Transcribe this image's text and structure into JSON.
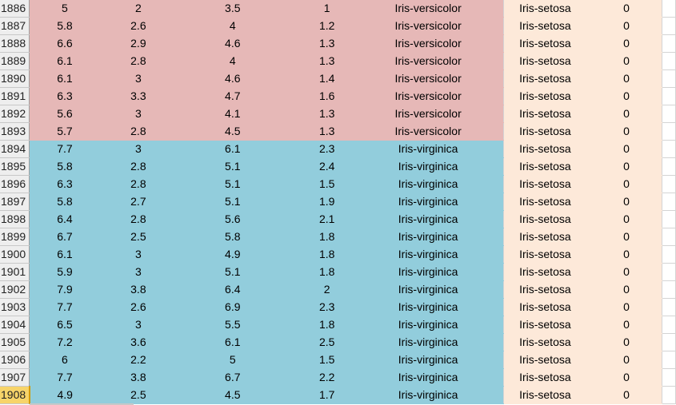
{
  "selected_row": "1908",
  "rows": [
    {
      "row": "1886",
      "c1": "5",
      "c2": "2",
      "c3": "3.5",
      "c4": "1",
      "species": "Iris-versicolor",
      "predicted": "Iris-setosa",
      "match": "0"
    },
    {
      "row": "1887",
      "c1": "5.8",
      "c2": "2.6",
      "c3": "4",
      "c4": "1.2",
      "species": "Iris-versicolor",
      "predicted": "Iris-setosa",
      "match": "0"
    },
    {
      "row": "1888",
      "c1": "6.6",
      "c2": "2.9",
      "c3": "4.6",
      "c4": "1.3",
      "species": "Iris-versicolor",
      "predicted": "Iris-setosa",
      "match": "0"
    },
    {
      "row": "1889",
      "c1": "6.1",
      "c2": "2.8",
      "c3": "4",
      "c4": "1.3",
      "species": "Iris-versicolor",
      "predicted": "Iris-setosa",
      "match": "0"
    },
    {
      "row": "1890",
      "c1": "6.1",
      "c2": "3",
      "c3": "4.6",
      "c4": "1.4",
      "species": "Iris-versicolor",
      "predicted": "Iris-setosa",
      "match": "0"
    },
    {
      "row": "1891",
      "c1": "6.3",
      "c2": "3.3",
      "c3": "4.7",
      "c4": "1.6",
      "species": "Iris-versicolor",
      "predicted": "Iris-setosa",
      "match": "0"
    },
    {
      "row": "1892",
      "c1": "5.6",
      "c2": "3",
      "c3": "4.1",
      "c4": "1.3",
      "species": "Iris-versicolor",
      "predicted": "Iris-setosa",
      "match": "0"
    },
    {
      "row": "1893",
      "c1": "5.7",
      "c2": "2.8",
      "c3": "4.5",
      "c4": "1.3",
      "species": "Iris-versicolor",
      "predicted": "Iris-setosa",
      "match": "0"
    },
    {
      "row": "1894",
      "c1": "7.7",
      "c2": "3",
      "c3": "6.1",
      "c4": "2.3",
      "species": "Iris-virginica",
      "predicted": "Iris-setosa",
      "match": "0"
    },
    {
      "row": "1895",
      "c1": "5.8",
      "c2": "2.8",
      "c3": "5.1",
      "c4": "2.4",
      "species": "Iris-virginica",
      "predicted": "Iris-setosa",
      "match": "0"
    },
    {
      "row": "1896",
      "c1": "6.3",
      "c2": "2.8",
      "c3": "5.1",
      "c4": "1.5",
      "species": "Iris-virginica",
      "predicted": "Iris-setosa",
      "match": "0"
    },
    {
      "row": "1897",
      "c1": "5.8",
      "c2": "2.7",
      "c3": "5.1",
      "c4": "1.9",
      "species": "Iris-virginica",
      "predicted": "Iris-setosa",
      "match": "0"
    },
    {
      "row": "1898",
      "c1": "6.4",
      "c2": "2.8",
      "c3": "5.6",
      "c4": "2.1",
      "species": "Iris-virginica",
      "predicted": "Iris-setosa",
      "match": "0"
    },
    {
      "row": "1899",
      "c1": "6.7",
      "c2": "2.5",
      "c3": "5.8",
      "c4": "1.8",
      "species": "Iris-virginica",
      "predicted": "Iris-setosa",
      "match": "0"
    },
    {
      "row": "1900",
      "c1": "6.1",
      "c2": "3",
      "c3": "4.9",
      "c4": "1.8",
      "species": "Iris-virginica",
      "predicted": "Iris-setosa",
      "match": "0"
    },
    {
      "row": "1901",
      "c1": "5.9",
      "c2": "3",
      "c3": "5.1",
      "c4": "1.8",
      "species": "Iris-virginica",
      "predicted": "Iris-setosa",
      "match": "0"
    },
    {
      "row": "1902",
      "c1": "7.9",
      "c2": "3.8",
      "c3": "6.4",
      "c4": "2",
      "species": "Iris-virginica",
      "predicted": "Iris-setosa",
      "match": "0"
    },
    {
      "row": "1903",
      "c1": "7.7",
      "c2": "2.6",
      "c3": "6.9",
      "c4": "2.3",
      "species": "Iris-virginica",
      "predicted": "Iris-setosa",
      "match": "0"
    },
    {
      "row": "1904",
      "c1": "6.5",
      "c2": "3",
      "c3": "5.5",
      "c4": "1.8",
      "species": "Iris-virginica",
      "predicted": "Iris-setosa",
      "match": "0"
    },
    {
      "row": "1905",
      "c1": "7.2",
      "c2": "3.6",
      "c3": "6.1",
      "c4": "2.5",
      "species": "Iris-virginica",
      "predicted": "Iris-setosa",
      "match": "0"
    },
    {
      "row": "1906",
      "c1": "6",
      "c2": "2.2",
      "c3": "5",
      "c4": "1.5",
      "species": "Iris-virginica",
      "predicted": "Iris-setosa",
      "match": "0"
    },
    {
      "row": "1907",
      "c1": "7.7",
      "c2": "3.8",
      "c3": "6.7",
      "c4": "2.2",
      "species": "Iris-virginica",
      "predicted": "Iris-setosa",
      "match": "0"
    },
    {
      "row": "1908",
      "c1": "4.9",
      "c2": "2.5",
      "c3": "4.5",
      "c4": "1.7",
      "species": "Iris-virginica",
      "predicted": "Iris-setosa",
      "match": "0"
    }
  ],
  "colors": {
    "versicolor_fill": "#e6b8b7",
    "virginica_fill": "#92cddc",
    "prediction_fill": "#fde9d9",
    "selected_row_header": "#f7d46a"
  }
}
